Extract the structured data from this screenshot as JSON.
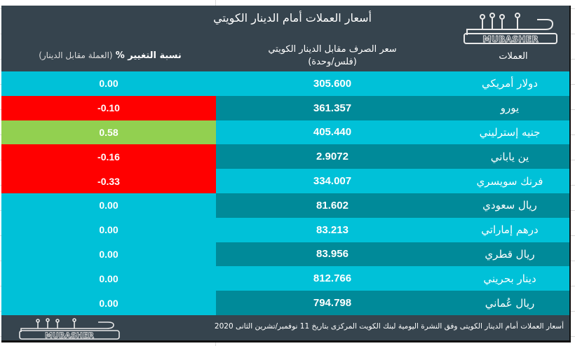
{
  "header": {
    "title": "أسعار العملات أمام الدينار الكويتي",
    "logo_text": "MUBASHER",
    "columns": {
      "currency": "العملات",
      "price_line1": "سعر الصرف مقابل الدينار الكويتي",
      "price_line2": "(فلس/وحدة)",
      "change_bold": "نسبة التغيير %",
      "change_sub": "(العملة مقابل الدينار)"
    }
  },
  "colors": {
    "header_bg": "#36444e",
    "row_light": "#00c1d8",
    "row_dark": "#008a99",
    "negative": "#ff0000",
    "positive": "#92d050",
    "neutral": "#00c1d8"
  },
  "rows": [
    {
      "currency": "دولار أمريكي",
      "price": "305.600",
      "change": "0.00",
      "trend": "neutral"
    },
    {
      "currency": "يورو",
      "price": "361.357",
      "change": "-0.10",
      "trend": "negative"
    },
    {
      "currency": "جنيه إسترليني",
      "price": "405.440",
      "change": "0.58",
      "trend": "positive"
    },
    {
      "currency": "ين ياباني",
      "price": "2.9072",
      "change": "-0.16",
      "trend": "negative"
    },
    {
      "currency": "فرنك سويسري",
      "price": "334.007",
      "change": "-0.33",
      "trend": "negative"
    },
    {
      "currency": "ريال سعودي",
      "price": "81.602",
      "change": "0.00",
      "trend": "neutral"
    },
    {
      "currency": "درهم إماراتي",
      "price": "83.213",
      "change": "0.00",
      "trend": "neutral"
    },
    {
      "currency": "ريال قطري",
      "price": "83.956",
      "change": "0.00",
      "trend": "neutral"
    },
    {
      "currency": "دينار بحريني",
      "price": "812.766",
      "change": "0.00",
      "trend": "neutral"
    },
    {
      "currency": "ريال عُماني",
      "price": "794.798",
      "change": "0.00",
      "trend": "neutral"
    }
  ],
  "footer": {
    "source_text": "أسعار  العملات أمام الدينار الكويتى وفق النشرة اليومية لبنك الكويت المركزى بتاريخ 11 نوفمبر/تشرين الثانى 2020",
    "logo_text": "MUBASHER"
  }
}
